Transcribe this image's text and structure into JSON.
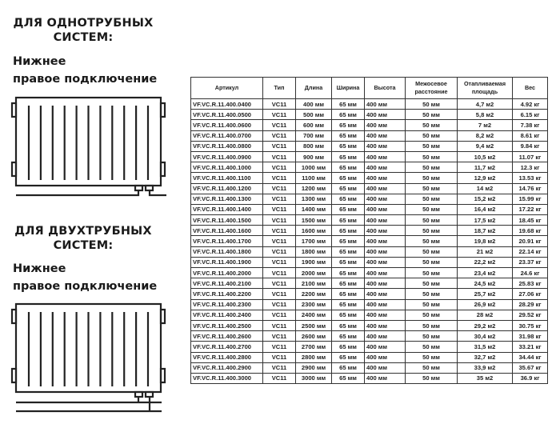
{
  "single_pipe": {
    "heading_line1": "ДЛЯ ОДНОТРУБНЫХ",
    "heading_line2": "СИСТЕМ:",
    "connection_line1": "Нижнее",
    "connection_line2": "правое подключение"
  },
  "two_pipe": {
    "heading_line1": "ДЛЯ ДВУХТРУБНЫХ",
    "heading_line2": "СИСТЕМ:",
    "connection_line1": "Нижнее",
    "connection_line2": "правое подключение"
  },
  "table": {
    "headers": [
      "Артикул",
      "Тип",
      "Длина",
      "Ширина",
      "Высота",
      "Межосевое расстояние",
      "Отапливаемая площадь",
      "Вес"
    ],
    "rows": [
      [
        "VF.VC.R.11.400.0400",
        "VC11",
        "400 мм",
        "65 мм",
        "400 мм",
        "50 мм",
        "4,7 м2",
        "4.92 кг"
      ],
      [
        "VF.VC.R.11.400.0500",
        "VC11",
        "500 мм",
        "65 мм",
        "400 мм",
        "50 мм",
        "5,8 м2",
        "6.15 кг"
      ],
      [
        "VF.VC.R.11.400.0600",
        "VC11",
        "600 мм",
        "65 мм",
        "400 мм",
        "50 мм",
        "7 м2",
        "7.38 кг"
      ],
      [
        "VF.VC.R.11.400.0700",
        "VC11",
        "700 мм",
        "65 мм",
        "400 мм",
        "50 мм",
        "8,2 м2",
        "8.61 кг"
      ],
      [
        "VF.VC.R.11.400.0800",
        "VC11",
        "800 мм",
        "65 мм",
        "400 мм",
        "50 мм",
        "9,4 м2",
        "9.84 кг"
      ],
      [
        "VF.VC.R.11.400.0900",
        "VC11",
        "900 мм",
        "65 мм",
        "400 мм",
        "50 мм",
        "10,5 м2",
        "11.07 кг"
      ],
      [
        "VF.VC.R.11.400.1000",
        "VC11",
        "1000 мм",
        "65 мм",
        "400 мм",
        "50 мм",
        "11,7 м2",
        "12.3 кг"
      ],
      [
        "VF.VC.R.11.400.1100",
        "VC11",
        "1100 мм",
        "65 мм",
        "400 мм",
        "50 мм",
        "12,9 м2",
        "13.53 кг"
      ],
      [
        "VF.VC.R.11.400.1200",
        "VC11",
        "1200 мм",
        "65 мм",
        "400 мм",
        "50 мм",
        "14 м2",
        "14.76 кг"
      ],
      [
        "VF.VC.R.11.400.1300",
        "VC11",
        "1300 мм",
        "65 мм",
        "400 мм",
        "50 мм",
        "15,2 м2",
        "15.99 кг"
      ],
      [
        "VF.VC.R.11.400.1400",
        "VC11",
        "1400 мм",
        "65 мм",
        "400 мм",
        "50 мм",
        "16,4 м2",
        "17.22 кг"
      ],
      [
        "VF.VC.R.11.400.1500",
        "VC11",
        "1500 мм",
        "65 мм",
        "400 мм",
        "50 мм",
        "17,5 м2",
        "18.45 кг"
      ],
      [
        "VF.VC.R.11.400.1600",
        "VC11",
        "1600 мм",
        "65 мм",
        "400 мм",
        "50 мм",
        "18,7 м2",
        "19.68 кг"
      ],
      [
        "VF.VC.R.11.400.1700",
        "VC11",
        "1700 мм",
        "65 мм",
        "400 мм",
        "50 мм",
        "19,8 м2",
        "20.91 кг"
      ],
      [
        "VF.VC.R.11.400.1800",
        "VC11",
        "1800 мм",
        "65 мм",
        "400 мм",
        "50 мм",
        "21 м2",
        "22.14 кг"
      ],
      [
        "VF.VC.R.11.400.1900",
        "VC11",
        "1900 мм",
        "65 мм",
        "400 мм",
        "50 мм",
        "22,2 м2",
        "23.37 кг"
      ],
      [
        "VF.VC.R.11.400.2000",
        "VC11",
        "2000 мм",
        "65 мм",
        "400 мм",
        "50 мм",
        "23,4 м2",
        "24.6 кг"
      ],
      [
        "VF.VC.R.11.400.2100",
        "VC11",
        "2100 мм",
        "65 мм",
        "400 мм",
        "50 мм",
        "24,5 м2",
        "25.83 кг"
      ],
      [
        "VF.VC.R.11.400.2200",
        "VC11",
        "2200 мм",
        "65 мм",
        "400 мм",
        "50 мм",
        "25,7 м2",
        "27.06 кг"
      ],
      [
        "VF.VC.R.11.400.2300",
        "VC11",
        "2300 мм",
        "65 мм",
        "400 мм",
        "50 мм",
        "26,9 м2",
        "28.29 кг"
      ],
      [
        "VF.VC.R.11.400.2400",
        "VC11",
        "2400 мм",
        "65 мм",
        "400 мм",
        "50 мм",
        "28 м2",
        "29.52 кг"
      ],
      [
        "VF.VC.R.11.400.2500",
        "VC11",
        "2500 мм",
        "65 мм",
        "400 мм",
        "50 мм",
        "29,2 м2",
        "30.75 кг"
      ],
      [
        "VF.VC.R.11.400.2600",
        "VC11",
        "2600 мм",
        "65 мм",
        "400 мм",
        "50 мм",
        "30,4 м2",
        "31.98 кг"
      ],
      [
        "VF.VC.R.11.400.2700",
        "VC11",
        "2700 мм",
        "65 мм",
        "400 мм",
        "50 мм",
        "31,5 м2",
        "33.21 кг"
      ],
      [
        "VF.VC.R.11.400.2800",
        "VC11",
        "2800 мм",
        "65 мм",
        "400 мм",
        "50 мм",
        "32,7 м2",
        "34.44 кг"
      ],
      [
        "VF.VC.R.11.400.2900",
        "VC11",
        "2900 мм",
        "65 мм",
        "400 мм",
        "50 мм",
        "33,9 м2",
        "35.67 кг"
      ],
      [
        "VF.VC.R.11.400.3000",
        "VC11",
        "3000 мм",
        "65 мм",
        "400 мм",
        "50 мм",
        "35 м2",
        "36.9 кг"
      ]
    ]
  }
}
